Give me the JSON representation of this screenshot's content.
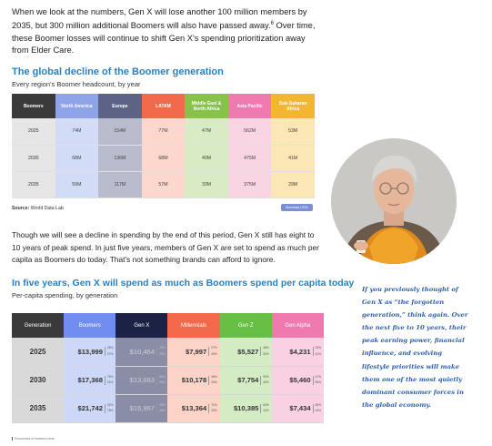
{
  "intro": {
    "text": "When we look at the numbers, Gen X will lose another 100 million members by 2035, but 300 million additional Boomers will also have passed away.",
    "footnote": "6",
    "text2": " Over time, these Boomer losses will continue to shift Gen X's spending prioritization away from Elder Care."
  },
  "boomer_section": {
    "title": "The global decline of the Boomer generation",
    "subtitle": "Every region's Boomer headcount, by year",
    "source_label": "Source:",
    "source_text": " World Data Lab",
    "badge": "Nominal USD"
  },
  "boomer_table": {
    "headers": [
      "Boomers",
      "North America",
      "Europe",
      "LATAM",
      "Middle East & North Africa",
      "Asia Pacific",
      "Sub-Saharan Africa"
    ],
    "header_colors": [
      "#3a3a3a",
      "#8ea3e8",
      "#5c6384",
      "#f26a4b",
      "#88c24a",
      "#ef7ab0",
      "#f3b630"
    ],
    "col_colors": [
      "#e6e6e6",
      "#d3dcf6",
      "#b9bccc",
      "#fbd7cd",
      "#d8ebc5",
      "#f9d5e4",
      "#fbe6b5"
    ],
    "rows": [
      [
        "2025",
        "74M",
        "154M",
        "77M",
        "47M",
        "562M",
        "53M"
      ],
      [
        "2030",
        "68M",
        "136M",
        "68M",
        "40M",
        "475M",
        "41M"
      ],
      [
        "2035",
        "59M",
        "117M",
        "57M",
        "33M",
        "375M",
        "29M"
      ]
    ]
  },
  "para2": "Though we will see a decline in spending by the end of this period, Gen X still has eight to 10 years of peak spend. In just five years, members of Gen X are set to spend as much per capita as Boomers do today. That's not something brands can afford to ignore.",
  "spend_section": {
    "title": "In five years, Gen X will spend as much as Boomers spend per capita today",
    "subtitle": "Per-capita spending, by generation"
  },
  "spend_table": {
    "headers": [
      "Generation",
      "Boomers",
      "Gen X",
      "Millennials",
      "Gen Z",
      "Gen Alpha"
    ],
    "header_colors": [
      "#3a3a3a",
      "#6f8ef0",
      "#1c2245",
      "#f26a4b",
      "#67bf45",
      "#ef7ab0"
    ],
    "col_colors": [
      "#d9d9d9",
      "#cdd8f8",
      "#8a8da6",
      "#fbd3c7",
      "#d4ecc4",
      "#f9d1e3"
    ],
    "rows": [
      {
        "year": "2025",
        "cells": [
          {
            "value": "$13,999",
            "p1": "28%",
            "p2": "27%"
          },
          {
            "value": "$10,464",
            "p1": "27%",
            "p2": "27%"
          },
          {
            "value": "$7,997",
            "p1": "27%",
            "p2": "43%"
          },
          {
            "value": "$5,527",
            "p1": "48%",
            "p2": "52%"
          },
          {
            "value": "$4,231",
            "p1": "53%",
            "p2": "61%"
          }
        ]
      },
      {
        "year": "2030",
        "cells": [
          {
            "value": "$17,368",
            "p1": "75%",
            "p2": "24%"
          },
          {
            "value": "$13,663",
            "p1": "31%",
            "p2": "32%"
          },
          {
            "value": "$10,178",
            "p1": "36%",
            "p2": "33%"
          },
          {
            "value": "$7,754",
            "p1": "90%",
            "p2": "46%"
          },
          {
            "value": "$5,460",
            "p1": "47%",
            "p2": "55%"
          }
        ]
      },
      {
        "year": "2035",
        "cells": [
          {
            "value": "$21,742",
            "p1": "32%",
            "p2": "78%"
          },
          {
            "value": "$16,967",
            "p1": "44%",
            "p2": "34%"
          },
          {
            "value": "$13,364",
            "p1": "71%",
            "p2": "29%"
          },
          {
            "value": "$10,385",
            "p1": "63%",
            "p2": "34%"
          },
          {
            "value": "$7,434",
            "p1": "60%",
            "p2": "44%"
          }
        ]
      }
    ]
  },
  "fine_print": "Economies of insisters more",
  "quote": "If you previously thought of Gen X as “the forgotten generation,” think again. Over the next five to 10 years, their peak earning power, financial influence, and evolving lifestyle priorities will make them one of the most quietly dominant consumer forces in the global economy."
}
